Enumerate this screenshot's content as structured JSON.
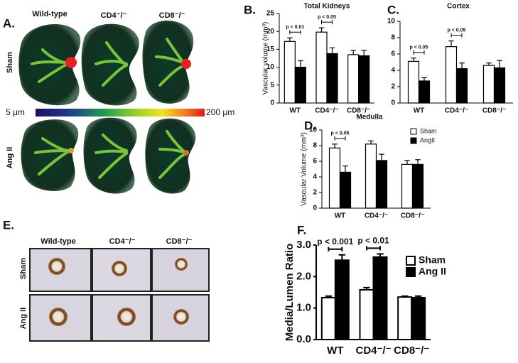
{
  "chart_data": [
    {
      "type": "bar",
      "panel_label": "B.",
      "title": "Total Kidneys",
      "ylabel": "Vascular volume (mm³)",
      "categories": [
        "WT",
        "CD4⁻/⁻",
        "CD8⁻/⁻"
      ],
      "series": [
        {
          "name": "Sham",
          "color": "#ffffff",
          "values": [
            17.2,
            19.8,
            13.5
          ],
          "errors": [
            1.0,
            1.2,
            1.2
          ]
        },
        {
          "name": "AngII",
          "color": "#000000",
          "values": [
            10.0,
            13.8,
            13.2
          ],
          "errors": [
            1.8,
            1.6,
            1.5
          ]
        }
      ],
      "annotations": [
        "p < 0.01",
        "p < 0.05"
      ],
      "ylim": [
        0,
        25
      ],
      "yticks": [
        0,
        5,
        10,
        15,
        20,
        25
      ]
    },
    {
      "type": "bar",
      "panel_label": "C.",
      "title": "Cortex",
      "categories": [
        "WT",
        "CD4⁻/⁻",
        "CD8⁻/⁻"
      ],
      "series": [
        {
          "name": "Sham",
          "color": "#ffffff",
          "values": [
            5.1,
            6.9,
            4.6
          ],
          "errors": [
            0.4,
            0.7,
            0.3
          ]
        },
        {
          "name": "AngII",
          "color": "#000000",
          "values": [
            2.7,
            4.2,
            4.3
          ],
          "errors": [
            0.4,
            0.7,
            0.9
          ]
        }
      ],
      "annotations": [
        "p < 0.05",
        "p < 0.05"
      ],
      "ylim": [
        0,
        10
      ],
      "yticks": [
        0,
        2,
        4,
        6,
        8,
        10
      ]
    },
    {
      "type": "bar",
      "panel_label": "D.",
      "title": "Medulla",
      "ylabel": "Vascular Volume (mm³)",
      "categories": [
        "WT",
        "CD4⁻/⁻",
        "CD8⁻/⁻"
      ],
      "series": [
        {
          "name": "Sham",
          "color": "#ffffff",
          "values": [
            7.7,
            8.2,
            5.6
          ],
          "errors": [
            0.5,
            0.4,
            0.5
          ]
        },
        {
          "name": "AngII",
          "color": "#000000",
          "values": [
            4.6,
            6.1,
            5.6
          ],
          "errors": [
            0.8,
            0.8,
            0.6
          ]
        }
      ],
      "annotations": [
        "p < 0.05"
      ],
      "legend": "upper right",
      "ylim": [
        0,
        10
      ],
      "yticks": [
        0,
        2,
        4,
        6,
        8,
        10
      ]
    },
    {
      "type": "bar",
      "panel_label": "F.",
      "ylabel": "Media/Lumen Ratio",
      "categories": [
        "WT",
        "CD4⁻/⁻",
        "CD8⁻/⁻"
      ],
      "series": [
        {
          "name": "Sham",
          "color": "#ffffff",
          "values": [
            1.33,
            1.58,
            1.35
          ],
          "errors": [
            0.05,
            0.07,
            0.03
          ]
        },
        {
          "name": "Ang II",
          "color": "#000000",
          "values": [
            2.52,
            2.62,
            1.33
          ],
          "errors": [
            0.17,
            0.1,
            0.05
          ]
        }
      ],
      "annotations": [
        "p < 0.001",
        "p < 0.01"
      ],
      "legend": "upper right",
      "ylim": [
        0,
        3
      ],
      "yticks": [
        {
          "value": 0,
          "label": "0.0"
        },
        {
          "value": 1,
          "label": "1.0"
        },
        {
          "value": 2,
          "label": "2.0"
        },
        {
          "value": 3,
          "label": "3.0"
        }
      ]
    }
  ],
  "panel_a": {
    "label": "A.",
    "columns": [
      "Wild-type",
      "CD4⁻/⁻",
      "CD8⁻/⁻"
    ],
    "rows": [
      "Sham",
      "Ang II"
    ],
    "scale_min": "5 μm",
    "scale_max": "200 μm"
  },
  "panel_e": {
    "label": "E.",
    "columns": [
      "Wild-type",
      "CD4⁻/⁻",
      "CD8⁻/⁻"
    ],
    "rows": [
      "Sham",
      "Ang II"
    ]
  }
}
